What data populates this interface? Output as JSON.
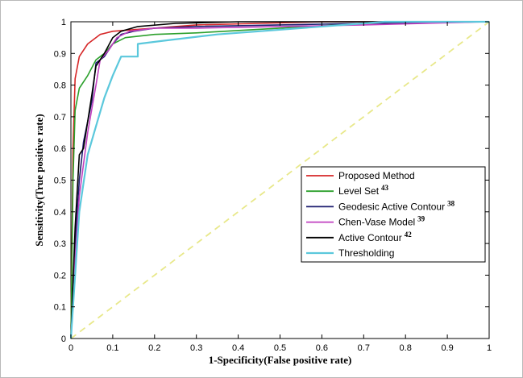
{
  "chart_data": {
    "type": "line",
    "title": "",
    "xlabel": "1-Specificity(False positive rate)",
    "ylabel": "Sensitivity(True positive rate)",
    "xlim": [
      0,
      1
    ],
    "ylim": [
      0,
      1
    ],
    "xticks": [
      "0",
      "0.1",
      "0.2",
      "0.3",
      "0.4",
      "0.5",
      "0.6",
      "0.7",
      "0.8",
      "0.9",
      "1"
    ],
    "yticks": [
      "0",
      "0.1",
      "0.2",
      "0.3",
      "0.4",
      "0.5",
      "0.6",
      "0.7",
      "0.8",
      "0.9",
      "1"
    ],
    "grid": false,
    "legend_position": "right",
    "series": [
      {
        "name": "Proposed Method",
        "sup": "",
        "color": "#d62728",
        "points": [
          [
            0,
            0
          ],
          [
            0.005,
            0.6
          ],
          [
            0.01,
            0.82
          ],
          [
            0.02,
            0.89
          ],
          [
            0.04,
            0.93
          ],
          [
            0.07,
            0.96
          ],
          [
            0.1,
            0.97
          ],
          [
            0.15,
            0.975
          ],
          [
            0.2,
            0.98
          ],
          [
            0.3,
            0.99
          ],
          [
            0.45,
            0.995
          ],
          [
            0.6,
            1.0
          ],
          [
            1,
            1
          ]
        ]
      },
      {
        "name": "Level Set",
        "sup": "43",
        "color": "#2ca02c",
        "points": [
          [
            0,
            0
          ],
          [
            0.005,
            0.5
          ],
          [
            0.01,
            0.72
          ],
          [
            0.02,
            0.79
          ],
          [
            0.04,
            0.83
          ],
          [
            0.06,
            0.88
          ],
          [
            0.08,
            0.9
          ],
          [
            0.1,
            0.93
          ],
          [
            0.13,
            0.95
          ],
          [
            0.2,
            0.96
          ],
          [
            0.3,
            0.965
          ],
          [
            0.5,
            0.98
          ],
          [
            0.7,
            0.995
          ],
          [
            1,
            1
          ]
        ]
      },
      {
        "name": "Geodesic Active Contour",
        "sup": "38",
        "color": "#1f1f70",
        "points": [
          [
            0,
            0
          ],
          [
            0.01,
            0.3
          ],
          [
            0.02,
            0.5
          ],
          [
            0.03,
            0.62
          ],
          [
            0.05,
            0.75
          ],
          [
            0.06,
            0.87
          ],
          [
            0.08,
            0.89
          ],
          [
            0.1,
            0.93
          ],
          [
            0.12,
            0.96
          ],
          [
            0.15,
            0.97
          ],
          [
            0.2,
            0.98
          ],
          [
            0.3,
            0.985
          ],
          [
            0.5,
            0.99
          ],
          [
            0.7,
            0.995
          ],
          [
            1,
            1
          ]
        ]
      },
      {
        "name": "Chen-Vase Model",
        "sup": "39",
        "color": "#c040c0",
        "points": [
          [
            0,
            0
          ],
          [
            0.01,
            0.25
          ],
          [
            0.02,
            0.45
          ],
          [
            0.04,
            0.65
          ],
          [
            0.06,
            0.8
          ],
          [
            0.07,
            0.88
          ],
          [
            0.09,
            0.91
          ],
          [
            0.11,
            0.95
          ],
          [
            0.14,
            0.97
          ],
          [
            0.2,
            0.98
          ],
          [
            0.3,
            0.98
          ],
          [
            0.5,
            0.985
          ],
          [
            0.7,
            0.99
          ],
          [
            1,
            1
          ]
        ]
      },
      {
        "name": "Active Contour",
        "sup": "42",
        "color": "#000000",
        "points": [
          [
            0,
            0
          ],
          [
            0.01,
            0.35
          ],
          [
            0.02,
            0.58
          ],
          [
            0.03,
            0.6
          ],
          [
            0.05,
            0.77
          ],
          [
            0.06,
            0.86
          ],
          [
            0.08,
            0.9
          ],
          [
            0.1,
            0.95
          ],
          [
            0.12,
            0.97
          ],
          [
            0.16,
            0.985
          ],
          [
            0.25,
            0.995
          ],
          [
            0.4,
            1.0
          ],
          [
            1,
            1
          ]
        ]
      },
      {
        "name": "Thresholding",
        "sup": "",
        "color": "#5bc8dc",
        "points": [
          [
            0,
            0
          ],
          [
            0.01,
            0.2
          ],
          [
            0.02,
            0.4
          ],
          [
            0.04,
            0.58
          ],
          [
            0.06,
            0.67
          ],
          [
            0.08,
            0.76
          ],
          [
            0.1,
            0.83
          ],
          [
            0.12,
            0.89
          ],
          [
            0.16,
            0.89
          ],
          [
            0.16,
            0.93
          ],
          [
            0.22,
            0.94
          ],
          [
            0.35,
            0.96
          ],
          [
            0.45,
            0.97
          ],
          [
            0.55,
            0.98
          ],
          [
            0.7,
            0.995
          ],
          [
            0.75,
            1.0
          ],
          [
            1,
            1
          ]
        ]
      },
      {
        "name": "",
        "sup": "",
        "color": "#e8e88a",
        "dashed": true,
        "points": [
          [
            0,
            0
          ],
          [
            1,
            1
          ]
        ]
      }
    ]
  }
}
